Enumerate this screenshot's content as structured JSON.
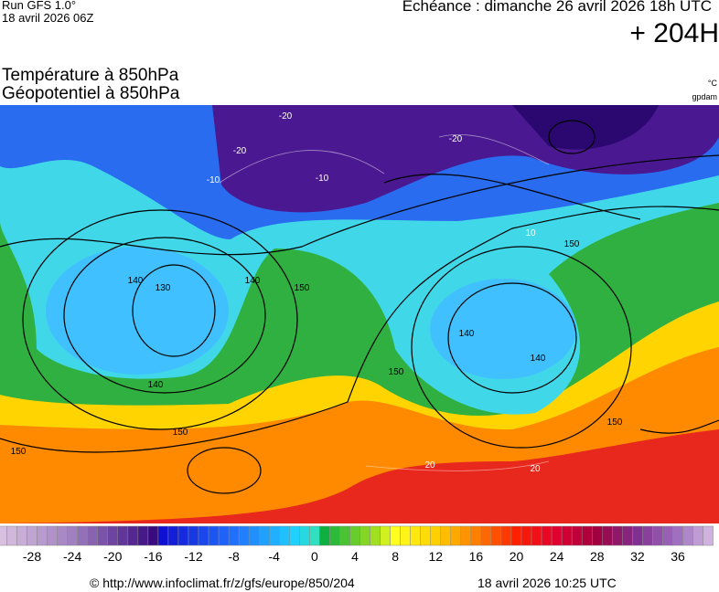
{
  "header": {
    "run": "Run GFS 1.0°",
    "run_date": "18 avril 2026 06Z",
    "valid_time": "Echéance : dimanche 26 avril 2026 18h UTC",
    "lead": "+ 204H",
    "title_1": "Température à 850hPa",
    "title_2": "Géopotentiel à 850hPa",
    "unit_1": "°C",
    "unit_2": "gpdam"
  },
  "map": {
    "contour_labels": [
      "-20",
      "-20",
      "-10",
      "-10",
      "-20",
      "10",
      "140",
      "130",
      "140",
      "140",
      "150",
      "150",
      "150",
      "140",
      "150",
      "140",
      "150",
      "150",
      "20",
      "20"
    ]
  },
  "colorbar": {
    "ticks": [
      -28,
      -24,
      -20,
      -16,
      -12,
      -8,
      -4,
      0,
      4,
      8,
      12,
      16,
      20,
      24,
      28,
      32,
      36
    ]
  },
  "footer": {
    "url": "© http://www.infoclimat.fr/z/gfs/europe/850/204",
    "generated": "18 avril 2026 10:25 UTC"
  }
}
